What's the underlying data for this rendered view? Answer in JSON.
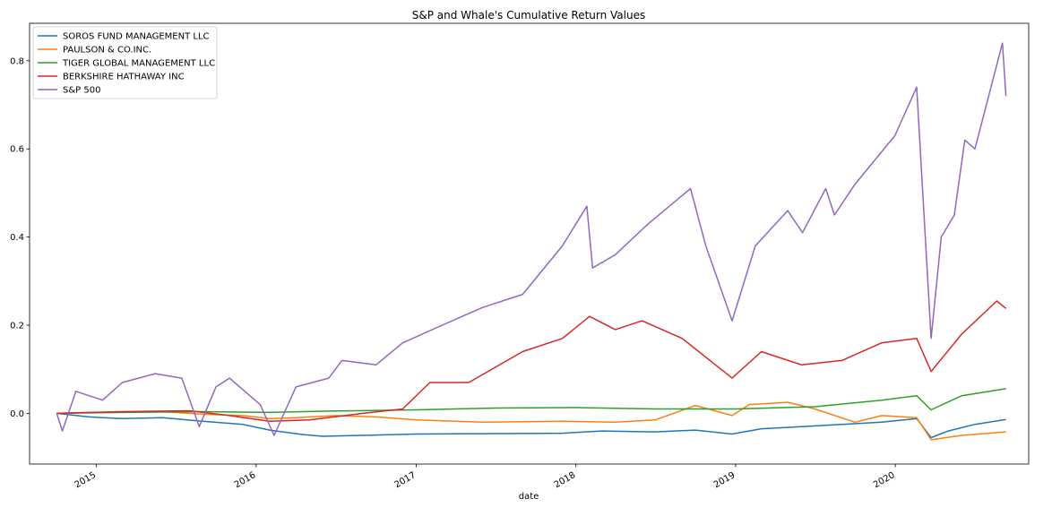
{
  "chart_data": {
    "type": "line",
    "title": "S&P and Whale's Cumulative Return Values",
    "xlabel": "date",
    "ylabel": "",
    "xlim": [
      "2014-08-01",
      "2020-11-01"
    ],
    "ylim": [
      -0.115,
      0.885
    ],
    "grid": false,
    "legend_position": "top-left",
    "x_ticks": [
      "2015",
      "2016",
      "2017",
      "2018",
      "2019",
      "2020"
    ],
    "x_tick_dates": [
      "2015-01-01",
      "2016-01-01",
      "2017-01-01",
      "2018-01-01",
      "2019-01-01",
      "2020-01-01"
    ],
    "y_ticks": [
      {
        "value": 0.0,
        "label": "0.0"
      },
      {
        "value": 0.2,
        "label": "0.2"
      },
      {
        "value": 0.4,
        "label": "0.4"
      },
      {
        "value": 0.6,
        "label": "0.6"
      },
      {
        "value": 0.8,
        "label": "0.8"
      }
    ],
    "series": [
      {
        "name": "SOROS FUND MANAGEMENT LLC",
        "color": "#1f77b4",
        "points": [
          [
            "2014-10-02",
            0.0
          ],
          [
            "2014-12-15",
            -0.008
          ],
          [
            "2015-03-01",
            -0.012
          ],
          [
            "2015-06-01",
            -0.01
          ],
          [
            "2015-09-01",
            -0.018
          ],
          [
            "2015-12-01",
            -0.025
          ],
          [
            "2016-02-01",
            -0.038
          ],
          [
            "2016-04-15",
            -0.048
          ],
          [
            "2016-06-01",
            -0.052
          ],
          [
            "2016-09-01",
            -0.05
          ],
          [
            "2017-01-01",
            -0.047
          ],
          [
            "2017-06-01",
            -0.046
          ],
          [
            "2017-12-01",
            -0.045
          ],
          [
            "2018-03-01",
            -0.04
          ],
          [
            "2018-07-01",
            -0.042
          ],
          [
            "2018-10-01",
            -0.038
          ],
          [
            "2018-12-24",
            -0.047
          ],
          [
            "2019-03-01",
            -0.035
          ],
          [
            "2019-06-01",
            -0.03
          ],
          [
            "2019-09-01",
            -0.025
          ],
          [
            "2019-12-01",
            -0.02
          ],
          [
            "2020-02-19",
            -0.012
          ],
          [
            "2020-03-23",
            -0.055
          ],
          [
            "2020-05-01",
            -0.04
          ],
          [
            "2020-07-01",
            -0.025
          ],
          [
            "2020-09-10",
            -0.014
          ]
        ]
      },
      {
        "name": "PAULSON & CO.INC.",
        "color": "#ff7f0e",
        "points": [
          [
            "2014-10-02",
            0.0
          ],
          [
            "2014-12-15",
            0.002
          ],
          [
            "2015-03-01",
            0.003
          ],
          [
            "2015-06-01",
            0.004
          ],
          [
            "2015-09-01",
            -0.002
          ],
          [
            "2015-12-01",
            -0.005
          ],
          [
            "2016-02-01",
            -0.012
          ],
          [
            "2016-04-01",
            -0.01
          ],
          [
            "2016-07-01",
            -0.005
          ],
          [
            "2016-10-01",
            -0.008
          ],
          [
            "2017-01-01",
            -0.015
          ],
          [
            "2017-06-01",
            -0.02
          ],
          [
            "2017-12-01",
            -0.018
          ],
          [
            "2018-04-01",
            -0.02
          ],
          [
            "2018-07-01",
            -0.015
          ],
          [
            "2018-10-01",
            0.018
          ],
          [
            "2018-12-24",
            -0.005
          ],
          [
            "2019-02-01",
            0.02
          ],
          [
            "2019-05-01",
            0.025
          ],
          [
            "2019-07-01",
            0.01
          ],
          [
            "2019-10-01",
            -0.02
          ],
          [
            "2019-12-01",
            -0.005
          ],
          [
            "2020-02-19",
            -0.01
          ],
          [
            "2020-03-23",
            -0.06
          ],
          [
            "2020-06-01",
            -0.05
          ],
          [
            "2020-09-10",
            -0.042
          ]
        ]
      },
      {
        "name": "TIGER GLOBAL MANAGEMENT LLC",
        "color": "#2ca02c",
        "points": [
          [
            "2014-10-02",
            0.0
          ],
          [
            "2015-03-01",
            0.002
          ],
          [
            "2015-09-01",
            0.004
          ],
          [
            "2016-02-01",
            0.002
          ],
          [
            "2016-06-01",
            0.005
          ],
          [
            "2017-01-01",
            0.008
          ],
          [
            "2017-07-01",
            0.012
          ],
          [
            "2018-01-01",
            0.013
          ],
          [
            "2018-07-01",
            0.01
          ],
          [
            "2019-01-01",
            0.01
          ],
          [
            "2019-07-01",
            0.015
          ],
          [
            "2019-12-01",
            0.03
          ],
          [
            "2020-02-19",
            0.04
          ],
          [
            "2020-03-23",
            0.008
          ],
          [
            "2020-06-01",
            0.04
          ],
          [
            "2020-09-10",
            0.056
          ]
        ]
      },
      {
        "name": "BERKSHIRE HATHAWAY INC",
        "color": "#d62728",
        "points": [
          [
            "2014-10-02",
            0.0
          ],
          [
            "2015-03-01",
            0.004
          ],
          [
            "2015-08-01",
            0.006
          ],
          [
            "2015-11-01",
            -0.005
          ],
          [
            "2016-02-01",
            -0.018
          ],
          [
            "2016-05-01",
            -0.015
          ],
          [
            "2016-09-01",
            0.0
          ],
          [
            "2016-12-01",
            0.01
          ],
          [
            "2017-02-01",
            0.07
          ],
          [
            "2017-05-01",
            0.07
          ],
          [
            "2017-09-01",
            0.14
          ],
          [
            "2017-12-01",
            0.17
          ],
          [
            "2018-02-01",
            0.22
          ],
          [
            "2018-04-01",
            0.19
          ],
          [
            "2018-06-01",
            0.21
          ],
          [
            "2018-09-01",
            0.17
          ],
          [
            "2018-12-24",
            0.08
          ],
          [
            "2019-03-01",
            0.14
          ],
          [
            "2019-06-01",
            0.11
          ],
          [
            "2019-09-01",
            0.12
          ],
          [
            "2019-12-01",
            0.16
          ],
          [
            "2020-02-19",
            0.17
          ],
          [
            "2020-03-23",
            0.095
          ],
          [
            "2020-06-01",
            0.18
          ],
          [
            "2020-08-20",
            0.255
          ],
          [
            "2020-09-10",
            0.238
          ]
        ]
      },
      {
        "name": "S&P 500",
        "color": "#9467bd",
        "points": [
          [
            "2014-10-02",
            0.0
          ],
          [
            "2014-10-15",
            -0.04
          ],
          [
            "2014-11-15",
            0.05
          ],
          [
            "2014-12-15",
            0.04
          ],
          [
            "2015-01-15",
            0.03
          ],
          [
            "2015-03-01",
            0.07
          ],
          [
            "2015-05-15",
            0.09
          ],
          [
            "2015-07-15",
            0.08
          ],
          [
            "2015-08-24",
            -0.03
          ],
          [
            "2015-10-01",
            0.06
          ],
          [
            "2015-11-01",
            0.08
          ],
          [
            "2016-01-10",
            0.02
          ],
          [
            "2016-02-11",
            -0.05
          ],
          [
            "2016-04-01",
            0.06
          ],
          [
            "2016-06-15",
            0.08
          ],
          [
            "2016-07-15",
            0.12
          ],
          [
            "2016-10-01",
            0.11
          ],
          [
            "2016-12-01",
            0.16
          ],
          [
            "2017-03-01",
            0.2
          ],
          [
            "2017-06-01",
            0.24
          ],
          [
            "2017-09-01",
            0.27
          ],
          [
            "2017-12-01",
            0.38
          ],
          [
            "2018-01-26",
            0.47
          ],
          [
            "2018-02-08",
            0.33
          ],
          [
            "2018-04-01",
            0.36
          ],
          [
            "2018-06-15",
            0.43
          ],
          [
            "2018-09-20",
            0.51
          ],
          [
            "2018-10-25",
            0.38
          ],
          [
            "2018-12-24",
            0.21
          ],
          [
            "2019-02-15",
            0.38
          ],
          [
            "2019-04-30",
            0.46
          ],
          [
            "2019-06-03",
            0.41
          ],
          [
            "2019-07-26",
            0.51
          ],
          [
            "2019-08-15",
            0.45
          ],
          [
            "2019-10-01",
            0.52
          ],
          [
            "2019-12-31",
            0.63
          ],
          [
            "2020-02-19",
            0.74
          ],
          [
            "2020-03-23",
            0.17
          ],
          [
            "2020-04-15",
            0.4
          ],
          [
            "2020-05-15",
            0.45
          ],
          [
            "2020-06-08",
            0.62
          ],
          [
            "2020-07-01",
            0.6
          ],
          [
            "2020-09-02",
            0.84
          ],
          [
            "2020-09-10",
            0.72
          ]
        ]
      }
    ]
  }
}
